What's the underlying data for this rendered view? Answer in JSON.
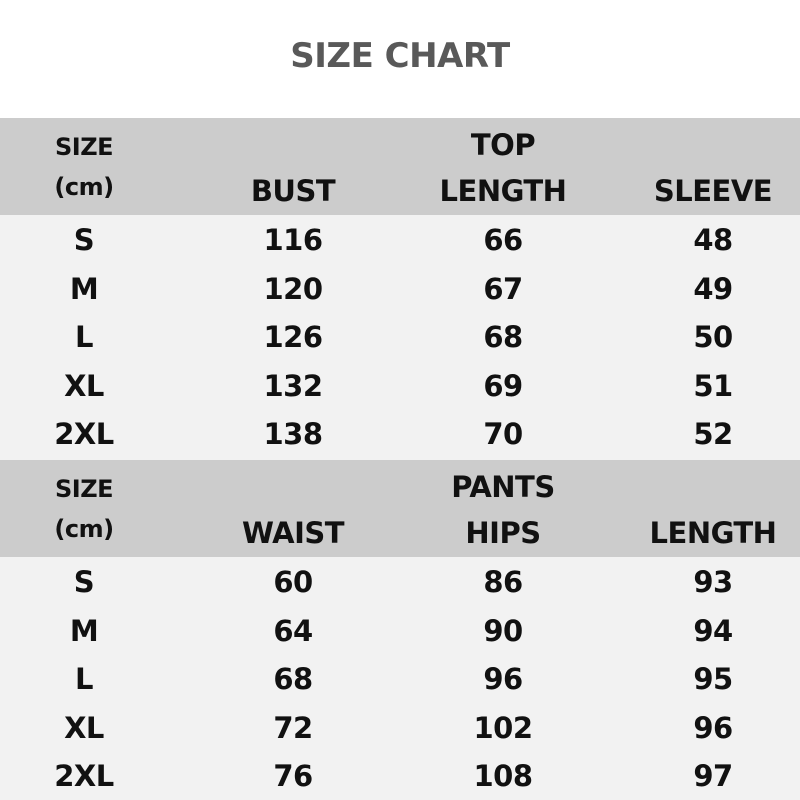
{
  "title": "SIZE CHART",
  "tables": [
    {
      "size_label": "SIZE",
      "unit_label": "(cm)",
      "group_label": "TOP",
      "columns": [
        "BUST",
        "LENGTH",
        "SLEEVE"
      ],
      "rows": [
        [
          "S",
          "116",
          "66",
          "48"
        ],
        [
          "M",
          "120",
          "67",
          "49"
        ],
        [
          "L",
          "126",
          "68",
          "50"
        ],
        [
          "XL",
          "132",
          "69",
          "51"
        ],
        [
          "2XL",
          "138",
          "70",
          "52"
        ]
      ]
    },
    {
      "size_label": "SIZE",
      "unit_label": "(cm)",
      "group_label": "PANTS",
      "columns": [
        "WAIST",
        "HIPS",
        "LENGTH"
      ],
      "rows": [
        [
          "S",
          "60",
          "86",
          "93"
        ],
        [
          "M",
          "64",
          "90",
          "94"
        ],
        [
          "L",
          "68",
          "96",
          "95"
        ],
        [
          "XL",
          "72",
          "102",
          "96"
        ],
        [
          "2XL",
          "76",
          "108",
          "97"
        ]
      ]
    }
  ],
  "colors": {
    "header_bg": "#cccccc",
    "body_bg": "#f2f2f2",
    "title": "#595959"
  }
}
